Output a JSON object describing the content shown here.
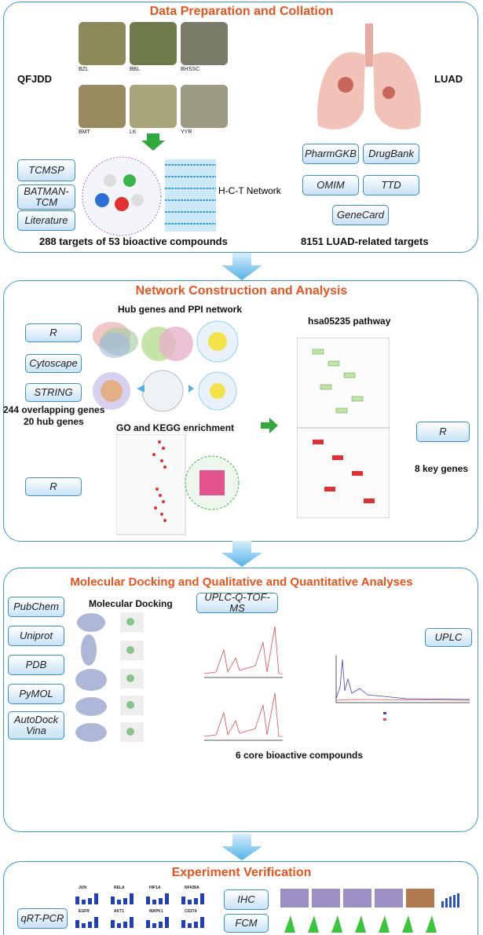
{
  "panels": [
    {
      "title": "Data Preparation and Collation",
      "left_label": "QFJDD",
      "right_label": "LUAD",
      "herbs": [
        "BZL",
        "BBL",
        "BHSSC",
        "BMT",
        "LK",
        "YYR"
      ],
      "tools": [
        "TCMSP",
        "BATMAN-TCM",
        "Literature"
      ],
      "network_label": "H-C-T Network",
      "databases": [
        "PharmGKB",
        "DrugBank",
        "OMIM",
        "TTD",
        "GeneCard"
      ],
      "left_summary": "288 targets of 53 bioactive compounds",
      "right_summary": "8151 LUAD-related targets"
    },
    {
      "title": "Network Construction and Analysis",
      "hub_title": "Hub genes and PPI network",
      "tools": [
        "R",
        "Cytoscape",
        "STRING"
      ],
      "overlap": "244 overlapping genes",
      "hub": "20 hub genes",
      "enrichment_title": "GO and KEGG enrichment",
      "enrichment_tool": "R",
      "pathway_title": "hsa05235 pathway",
      "pathway_tool": "R",
      "key_genes": "8 key genes"
    },
    {
      "title": "Molecular Docking and Qualitative and Quantitative Analyses",
      "docking_title": "Molecular Docking",
      "tools": [
        "PubChem",
        "Uniprot",
        "PDB",
        "PyMOL",
        "AutoDock Vina"
      ],
      "ms_tool": "UPLC-Q-TOF-MS",
      "uplc_tool": "UPLC",
      "summary": "6 core bioactive compounds"
    },
    {
      "title": "Experiment Verification",
      "tools": [
        "qRT-PCR",
        "IHC",
        "FCM"
      ],
      "genes": [
        "JUN",
        "RELA",
        "HIF1A",
        "NFKBIA",
        "EGFR",
        "AKT1",
        "MAPK1",
        "CD274"
      ]
    }
  ]
}
